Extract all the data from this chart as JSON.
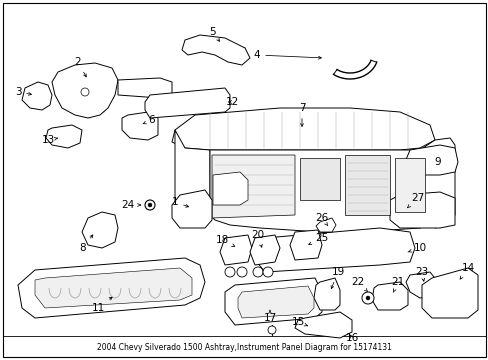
{
  "title": "2004 Chevy Silverado 1500 Ashtray,Instrument Panel Diagram for 15174131",
  "bg": "#ffffff",
  "lc": "#000000",
  "fig_w": 4.89,
  "fig_h": 3.6,
  "dpi": 100,
  "lw": 0.7,
  "fs": 7.5
}
